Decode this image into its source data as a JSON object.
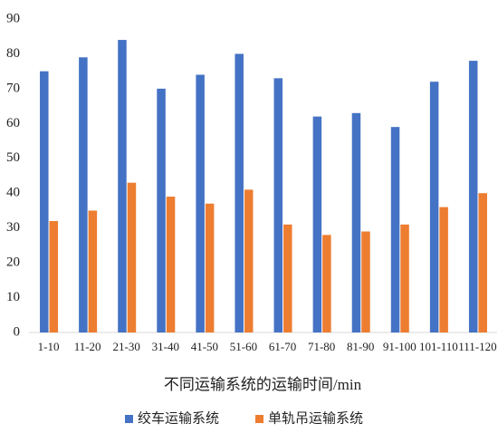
{
  "chart_data": {
    "type": "bar",
    "x_label": "不同运输系统的运输时间/min",
    "categories": [
      "1-10",
      "11-20",
      "21-30",
      "31-40",
      "41-50",
      "51-60",
      "61-70",
      "71-80",
      "81-90",
      "91-100",
      "101-110",
      "111-120"
    ],
    "series": [
      {
        "name": "绞车运输系统",
        "color": "#4472c4",
        "values": [
          75,
          79,
          84,
          70,
          74,
          80,
          73,
          62,
          63,
          59,
          72,
          78
        ]
      },
      {
        "name": "单轨吊运输系统",
        "color": "#ed7d31",
        "values": [
          32,
          35,
          43,
          39,
          37,
          41,
          31,
          28,
          29,
          31,
          36,
          40
        ]
      }
    ],
    "ylim": [
      0,
      90
    ],
    "yticks": [
      0,
      10,
      20,
      30,
      40,
      50,
      60,
      70,
      80,
      90
    ],
    "grid": false,
    "legend": "bottom"
  }
}
